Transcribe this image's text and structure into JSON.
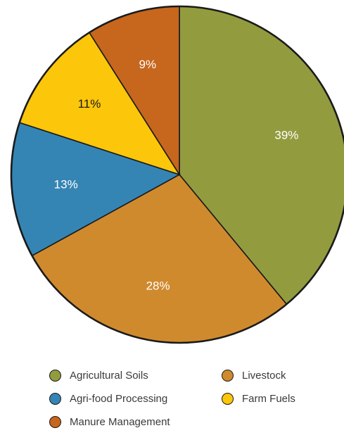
{
  "chart_data": {
    "type": "pie",
    "slices": [
      {
        "name": "Agricultural Soils",
        "value": 39,
        "label": "39%",
        "color": "#929c3f",
        "label_color": "#ffffff"
      },
      {
        "name": "Livestock",
        "value": 28,
        "label": "28%",
        "color": "#d08a2e",
        "label_color": "#ffffff"
      },
      {
        "name": "Agri-food Processing",
        "value": 13,
        "label": "13%",
        "color": "#3585b4",
        "label_color": "#ffffff"
      },
      {
        "name": "Farm Fuels",
        "value": 11,
        "label": "11%",
        "color": "#fcc60a",
        "label_color": "#1a1a1a"
      },
      {
        "name": "Manure Management",
        "value": 9,
        "label": "9%",
        "color": "#c7661d",
        "label_color": "#ffffff"
      }
    ],
    "legend": {
      "placement": "bottom",
      "columns": 2,
      "items": [
        {
          "label": "Agricultural Soils",
          "color": "#929c3f"
        },
        {
          "label": "Livestock",
          "color": "#d08a2e"
        },
        {
          "label": "Agri-food Processing",
          "color": "#3585b4"
        },
        {
          "label": "Farm Fuels",
          "color": "#fcc60a"
        },
        {
          "label": "Manure Management",
          "color": "#c7661d"
        }
      ]
    }
  }
}
